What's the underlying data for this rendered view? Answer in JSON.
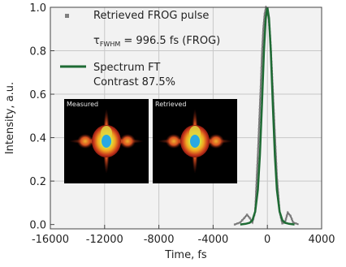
{
  "chart_data": {
    "type": "line",
    "xlabel": "Time, fs",
    "ylabel": "Intensity, a.u.",
    "xlim": [
      -16000,
      4000
    ],
    "ylim": [
      -0.02,
      1.0
    ],
    "x_ticks": [
      -16000,
      -12000,
      -8000,
      -4000,
      0,
      4000
    ],
    "x_tick_labels": [
      "-16000",
      "-12000",
      "-8000",
      "-4000",
      "0",
      "4000"
    ],
    "y_ticks": [
      0.0,
      0.2,
      0.4,
      0.6,
      0.8,
      1.0
    ],
    "y_tick_labels": [
      "0.0",
      "0.2",
      "0.4",
      "0.6",
      "0.8",
      "1.0"
    ],
    "grid": true,
    "legend_position": "top-right",
    "colors": {
      "frog": "#7f7f7f",
      "spectrum": "#1e6b34",
      "frog_gray_line": "#6f6f6f",
      "background": "#f2f2f2",
      "grid": "#c8c8c8"
    },
    "series": [
      {
        "name_prefix": "Retrieved FROG pulse",
        "name_line2_pre": "τ",
        "name_line2_sub": "FWHM",
        "name_line2_post": " = 996.5 fs (FROG)",
        "style": "dotted",
        "x": [
          -2400,
          -2000,
          -1700,
          -1500,
          -1300,
          -1100,
          -900,
          -700,
          -500,
          -400,
          -300,
          -200,
          -100,
          0,
          100,
          200,
          300,
          400,
          500,
          700,
          900,
          1100,
          1300,
          1500,
          1700,
          1900,
          2300
        ],
        "y": [
          0.0,
          0.01,
          0.03,
          0.045,
          0.03,
          0.01,
          0.06,
          0.32,
          0.62,
          0.78,
          0.9,
          0.97,
          1.0,
          0.99,
          0.95,
          0.87,
          0.75,
          0.62,
          0.48,
          0.22,
          0.06,
          0.005,
          0.01,
          0.055,
          0.04,
          0.01,
          0.0
        ]
      },
      {
        "name": "Spectrum FT",
        "name_line2": "Contrast 87.5%",
        "style": "solid",
        "x": [
          -2000,
          -1600,
          -1300,
          -1100,
          -900,
          -700,
          -550,
          -400,
          -250,
          -120,
          0,
          120,
          250,
          400,
          550,
          700,
          900,
          1100,
          1300,
          1600,
          2000
        ],
        "y": [
          0.0,
          0.003,
          0.008,
          0.02,
          0.06,
          0.16,
          0.32,
          0.55,
          0.8,
          0.95,
          1.0,
          0.95,
          0.8,
          0.55,
          0.32,
          0.16,
          0.06,
          0.02,
          0.008,
          0.003,
          0.0
        ]
      }
    ],
    "insets": [
      {
        "label": "Measured"
      },
      {
        "label": "Retrieved"
      }
    ]
  }
}
